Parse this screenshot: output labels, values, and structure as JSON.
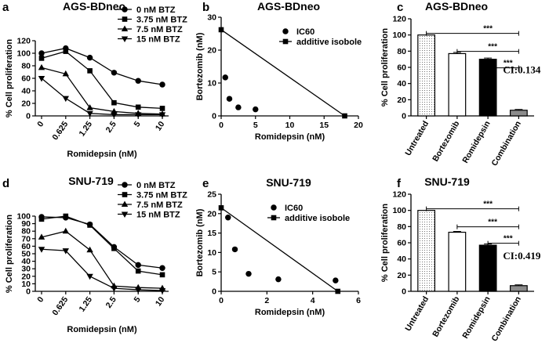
{
  "chart_data": [
    {
      "id": "a",
      "panel_label": "a",
      "type": "line",
      "title": "AGS-BDneo",
      "xlabel": "Romidepsin (nM)",
      "ylabel": "% Cell proliferation",
      "categories": [
        "0",
        "0.625",
        "1.25",
        "2.5",
        "5",
        "10"
      ],
      "ylim": [
        0,
        120
      ],
      "yticks": [
        0,
        20,
        40,
        60,
        80,
        100,
        120
      ],
      "series": [
        {
          "name": "0 nM BTZ",
          "marker": "circle",
          "values": [
            100,
            108,
            93,
            69,
            56,
            50
          ]
        },
        {
          "name": "3.75 nM BTZ",
          "marker": "square",
          "values": [
            92,
            103,
            72,
            21,
            14,
            12
          ]
        },
        {
          "name": "7.5 nM BTZ",
          "marker": "triangle-up",
          "values": [
            77,
            67,
            13,
            7,
            4,
            3
          ]
        },
        {
          "name": "15 nM BTZ",
          "marker": "triangle-down",
          "values": [
            60,
            28,
            4,
            2,
            2,
            2
          ]
        }
      ]
    },
    {
      "id": "b",
      "panel_label": "b",
      "type": "scatter",
      "title": "AGS-BDneo",
      "xlabel": "Romidepsin (nM)",
      "ylabel": "Bortezomib (nM)",
      "xlim": [
        0,
        20
      ],
      "xticks": [
        0,
        5,
        10,
        15,
        20
      ],
      "ylim": [
        0,
        30
      ],
      "yticks": [
        0,
        10,
        20,
        30
      ],
      "series": [
        {
          "name": "IC60",
          "marker": "circle",
          "points": [
            [
              0.6,
              11.7
            ],
            [
              1.2,
              5.2
            ],
            [
              2.5,
              2.6
            ],
            [
              5.0,
              2.0
            ]
          ]
        },
        {
          "name": "additive isobole",
          "marker": "square",
          "line": true,
          "points": [
            [
              0,
              26.2
            ],
            [
              18.0,
              0
            ]
          ]
        }
      ]
    },
    {
      "id": "c",
      "panel_label": "c",
      "type": "bar",
      "title": "AGS-BDneo",
      "ylabel": "% Cell proliferation",
      "categories": [
        "Untreated",
        "Bortezomib",
        "Romidepsin",
        "Combination"
      ],
      "values": [
        100,
        77,
        70,
        7
      ],
      "errors": [
        0,
        1.5,
        1.5,
        1
      ],
      "fills": [
        "dotted",
        "white",
        "black",
        "gray"
      ],
      "ylim": [
        0,
        120
      ],
      "yticks": [
        0,
        20,
        40,
        60,
        80,
        100,
        120
      ],
      "annotation": "CI:0.134",
      "significance": [
        {
          "from": 0,
          "to": 3,
          "label": "***"
        },
        {
          "from": 1,
          "to": 3,
          "label": "***"
        },
        {
          "from": 2,
          "to": 3,
          "label": "***"
        }
      ]
    },
    {
      "id": "d",
      "panel_label": "d",
      "type": "line",
      "title": "SNU-719",
      "xlabel": "Romidepsin (nM)",
      "ylabel": "% Cell proliferation",
      "categories": [
        "0",
        "0.625",
        "1.25",
        "2.5",
        "5",
        "10"
      ],
      "ylim": [
        0,
        100
      ],
      "yticks": [
        0,
        10,
        20,
        30,
        40,
        50,
        60,
        70,
        80,
        90,
        100
      ],
      "series": [
        {
          "name": "0 nM BTZ",
          "marker": "circle",
          "values": [
            99,
            98,
            89,
            59,
            35,
            31
          ]
        },
        {
          "name": "3.75 nM BTZ",
          "marker": "square",
          "values": [
            96,
            100,
            88,
            57,
            27,
            22
          ]
        },
        {
          "name": "7.5 nM BTZ",
          "marker": "triangle-up",
          "values": [
            72,
            80,
            55,
            7,
            5,
            4
          ]
        },
        {
          "name": "15 nM BTZ",
          "marker": "triangle-down",
          "values": [
            56,
            54,
            20,
            4,
            2,
            1
          ]
        }
      ]
    },
    {
      "id": "e",
      "panel_label": "e",
      "type": "scatter",
      "title": "SNU-719",
      "xlabel": "Romidepsin (nM)",
      "ylabel": "Bortezomib (nM)",
      "xlim": [
        0,
        6
      ],
      "xticks": [
        0,
        2,
        4,
        6
      ],
      "ylim": [
        0,
        25
      ],
      "yticks": [
        0,
        5,
        10,
        15,
        20,
        25
      ],
      "series": [
        {
          "name": "IC60",
          "marker": "circle",
          "points": [
            [
              0.3,
              19.0
            ],
            [
              0.6,
              10.8
            ],
            [
              1.2,
              4.5
            ],
            [
              2.5,
              3.1
            ],
            [
              5.0,
              2.8
            ]
          ]
        },
        {
          "name": "additive isobole",
          "marker": "square",
          "line": true,
          "points": [
            [
              0,
              21.5
            ],
            [
              5.1,
              0
            ]
          ]
        }
      ]
    },
    {
      "id": "f",
      "panel_label": "f",
      "type": "bar",
      "title": "SNU-719",
      "ylabel": "% Cell proliferation",
      "categories": [
        "Untreated",
        "Bortezomib",
        "Romidepsin",
        "Combination"
      ],
      "values": [
        100,
        73,
        57,
        7
      ],
      "errors": [
        0,
        1,
        1.5,
        1
      ],
      "fills": [
        "dotted",
        "white",
        "black",
        "gray"
      ],
      "ylim": [
        0,
        120
      ],
      "yticks": [
        0,
        20,
        40,
        60,
        80,
        100,
        120
      ],
      "annotation": "CI:0.419",
      "significance": [
        {
          "from": 0,
          "to": 3,
          "label": "***"
        },
        {
          "from": 1,
          "to": 3,
          "label": "***"
        },
        {
          "from": 2,
          "to": 3,
          "label": "***"
        }
      ]
    }
  ]
}
